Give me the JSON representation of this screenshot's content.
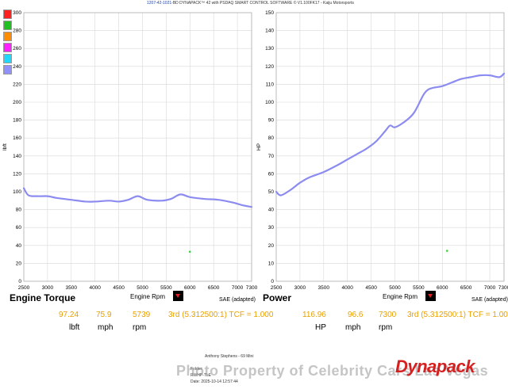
{
  "header": {
    "id": "1207-42-1021-",
    "text": "BD DYNAPACK™ 42 with PSDAQ SMART CONTROL SOFTWARE © V1.100FK17 - Kaiju Motorsports"
  },
  "swatch_colors": [
    "#ff2020",
    "#20c020",
    "#ff8c00",
    "#ff20ff",
    "#20d8ff",
    "#9090ff"
  ],
  "left_panel": {
    "title": "Engine Torque",
    "x_title": "Engine Rpm",
    "sae": "SAE (adapted)",
    "readout": {
      "v1": "97.24",
      "v2": "75.9",
      "v3": "5739",
      "u1": "lbft",
      "u2": "mph",
      "u3": "rpm"
    },
    "gear": "3rd (5.312500:1) TCF = 1.000"
  },
  "right_panel": {
    "title": "Power",
    "x_title": "Engine Rpm",
    "sae": "SAE (adapted)",
    "readout": {
      "v1": "116.96",
      "v2": "96.6",
      "v3": "7300",
      "u1": "HP",
      "u2": "mph",
      "u3": "rpm"
    },
    "gear": "3rd (5.312500:1) TCF = 1.000"
  },
  "footer": {
    "name": "Anthony Stephens - 69 Mini",
    "folder_label": "Folder:",
    "file_label": "RWHP-TLE",
    "date": "Date: 2025-10-14 12:57:44"
  },
  "watermark": "Photo Property of Celebrity Cars Las Vegas",
  "logo": "Dynapack",
  "chart_data": [
    {
      "type": "line",
      "title": "",
      "xlabel": "Engine Rpm",
      "ylabel": "lbft",
      "xlim": [
        2500,
        7300
      ],
      "ylim": [
        0,
        300
      ],
      "x_ticks": [
        "2500",
        "3000",
        "3500",
        "4000",
        "4500",
        "5000",
        "5500",
        "6000",
        "6500",
        "7000",
        "7300"
      ],
      "y_ticks": [
        "0",
        "20",
        "40",
        "60",
        "80",
        "100",
        "120",
        "140",
        "160",
        "180",
        "200",
        "220",
        "240",
        "260",
        "280",
        "300"
      ],
      "line_color": "#8c8cf0",
      "grid": true,
      "series": [
        {
          "x": [
            2500,
            2600,
            2800,
            3000,
            3200,
            3500,
            3800,
            4000,
            4300,
            4500,
            4700,
            4900,
            5100,
            5400,
            5600,
            5800,
            6000,
            6300,
            6600,
            6900,
            7100,
            7300
          ],
          "values": [
            104,
            96,
            95,
            95,
            93,
            91,
            89,
            89,
            90,
            89,
            91,
            95,
            91,
            90,
            92,
            97,
            94,
            92,
            91,
            88,
            85,
            83
          ]
        }
      ],
      "marker": {
        "x": 6000,
        "y": 33
      }
    },
    {
      "type": "line",
      "title": "",
      "xlabel": "Engine Rpm",
      "ylabel": "HP",
      "xlim": [
        2500,
        7300
      ],
      "ylim": [
        0,
        150
      ],
      "x_ticks": [
        "2500",
        "3000",
        "3500",
        "4000",
        "4500",
        "5000",
        "5500",
        "6000",
        "6500",
        "7000",
        "7300"
      ],
      "y_ticks": [
        "0",
        "10",
        "20",
        "30",
        "40",
        "50",
        "60",
        "70",
        "80",
        "90",
        "100",
        "110",
        "120",
        "130",
        "140",
        "150"
      ],
      "line_color": "#8c8cf0",
      "grid": true,
      "series": [
        {
          "x": [
            2500,
            2600,
            2800,
            3000,
            3200,
            3500,
            3800,
            4000,
            4200,
            4400,
            4600,
            4800,
            4900,
            5000,
            5200,
            5400,
            5600,
            5700,
            5800,
            6000,
            6200,
            6400,
            6600,
            6800,
            7000,
            7200,
            7300
          ],
          "values": [
            50,
            48,
            51,
            55,
            58,
            61,
            65,
            68,
            71,
            74,
            78,
            84,
            87,
            86,
            89,
            94,
            104,
            107,
            108,
            109,
            111,
            113,
            114,
            115,
            115,
            114,
            116
          ]
        }
      ],
      "marker": {
        "x": 6100,
        "y": 17
      }
    }
  ]
}
